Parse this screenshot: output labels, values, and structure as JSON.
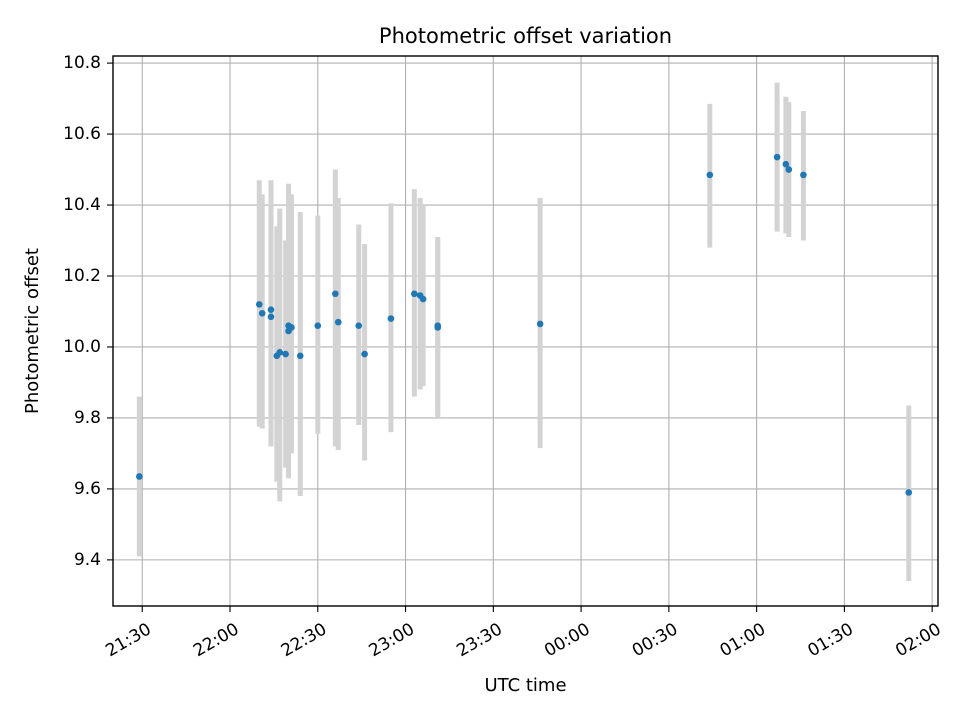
{
  "chart_data": {
    "type": "scatter",
    "title": "Photometric offset variation",
    "xlabel": "UTC time",
    "ylabel": "Photometric offset",
    "x_unit": "UTC time of night, beginning 21:30 and continuing past midnight",
    "xlim": [
      "21:20",
      "02:02"
    ],
    "ylim": [
      9.27,
      10.82
    ],
    "x_ticks": [
      "21:30",
      "22:00",
      "22:30",
      "23:00",
      "23:30",
      "00:00",
      "00:30",
      "01:00",
      "01:30",
      "02:00"
    ],
    "y_ticks": [
      9.4,
      9.6,
      9.8,
      10.0,
      10.2,
      10.4,
      10.6,
      10.8
    ],
    "y_tick_labels": [
      "9.4",
      "9.6",
      "9.8",
      "10.0",
      "10.2",
      "10.4",
      "10.6",
      "10.8"
    ],
    "grid": true,
    "marker_color": "#1f77b4",
    "errorbar_color": "#d3d3d3",
    "points": [
      {
        "time": "21:29",
        "y": 9.635,
        "lo": 9.41,
        "hi": 9.86
      },
      {
        "time": "22:10",
        "y": 10.12,
        "lo": 9.775,
        "hi": 10.47
      },
      {
        "time": "22:11",
        "y": 10.095,
        "lo": 9.77,
        "hi": 10.43
      },
      {
        "time": "22:14",
        "y": 10.085,
        "lo": 9.72,
        "hi": 10.45
      },
      {
        "time": "22:14",
        "y": 10.105,
        "lo": 9.74,
        "hi": 10.47
      },
      {
        "time": "22:16",
        "y": 9.975,
        "lo": 9.62,
        "hi": 10.34
      },
      {
        "time": "22:17",
        "y": 9.985,
        "lo": 9.565,
        "hi": 10.39
      },
      {
        "time": "22:19",
        "y": 9.98,
        "lo": 9.66,
        "hi": 10.3
      },
      {
        "time": "22:20",
        "y": 10.06,
        "lo": 9.63,
        "hi": 10.46
      },
      {
        "time": "22:20",
        "y": 10.045,
        "lo": 9.68,
        "hi": 10.44
      },
      {
        "time": "22:21",
        "y": 10.055,
        "lo": 9.7,
        "hi": 10.43
      },
      {
        "time": "22:24",
        "y": 9.975,
        "lo": 9.58,
        "hi": 10.38
      },
      {
        "time": "22:30",
        "y": 10.06,
        "lo": 9.755,
        "hi": 10.37
      },
      {
        "time": "22:36",
        "y": 10.15,
        "lo": 9.72,
        "hi": 10.5
      },
      {
        "time": "22:37",
        "y": 10.07,
        "lo": 9.71,
        "hi": 10.42
      },
      {
        "time": "22:44",
        "y": 10.06,
        "lo": 9.78,
        "hi": 10.345
      },
      {
        "time": "22:46",
        "y": 9.98,
        "lo": 9.68,
        "hi": 10.29
      },
      {
        "time": "22:55",
        "y": 10.08,
        "lo": 9.76,
        "hi": 10.405
      },
      {
        "time": "23:03",
        "y": 10.15,
        "lo": 9.86,
        "hi": 10.445
      },
      {
        "time": "23:05",
        "y": 10.145,
        "lo": 9.88,
        "hi": 10.42
      },
      {
        "time": "23:06",
        "y": 10.135,
        "lo": 9.89,
        "hi": 10.4
      },
      {
        "time": "23:11",
        "y": 10.06,
        "lo": 9.81,
        "hi": 10.31
      },
      {
        "time": "23:11",
        "y": 10.055,
        "lo": 9.8,
        "hi": 10.3
      },
      {
        "time": "23:46",
        "y": 10.065,
        "lo": 9.715,
        "hi": 10.42
      },
      {
        "time": "00:44",
        "y": 10.485,
        "lo": 10.28,
        "hi": 10.685
      },
      {
        "time": "01:07",
        "y": 10.535,
        "lo": 10.325,
        "hi": 10.745
      },
      {
        "time": "01:10",
        "y": 10.515,
        "lo": 10.32,
        "hi": 10.705
      },
      {
        "time": "01:11",
        "y": 10.5,
        "lo": 10.31,
        "hi": 10.69
      },
      {
        "time": "01:16",
        "y": 10.485,
        "lo": 10.3,
        "hi": 10.665
      },
      {
        "time": "01:52",
        "y": 9.59,
        "lo": 9.34,
        "hi": 9.835
      }
    ]
  }
}
